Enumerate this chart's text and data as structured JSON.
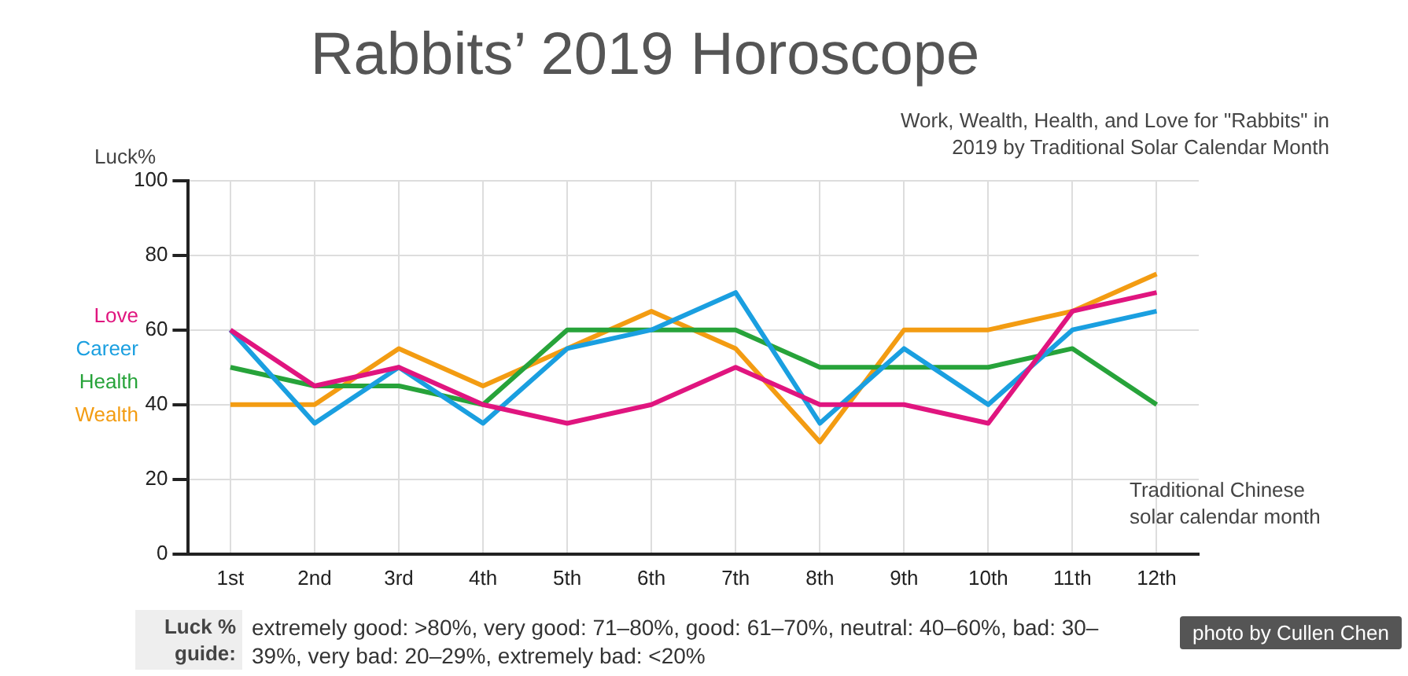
{
  "chart_data": {
    "type": "line",
    "title": "Rabbits’ 2019 Horoscope",
    "subtitle": "Work, Wealth, Health, and Love for \"Rabbits\" in 2019 by Traditional Solar Calendar Month",
    "ylabel": "Luck%",
    "xlabel": "Traditional Chinese solar calendar month",
    "categories": [
      "1st",
      "2nd",
      "3rd",
      "4th",
      "5th",
      "6th",
      "7th",
      "8th",
      "9th",
      "10th",
      "11th",
      "12th"
    ],
    "series": [
      {
        "name": "Love",
        "color": "#e0157f",
        "values": [
          60,
          45,
          50,
          40,
          35,
          40,
          50,
          40,
          40,
          35,
          65,
          70
        ]
      },
      {
        "name": "Career",
        "color": "#1a9fe0",
        "values": [
          60,
          35,
          50,
          35,
          55,
          60,
          70,
          35,
          55,
          40,
          60,
          65
        ]
      },
      {
        "name": "Health",
        "color": "#27a33a",
        "values": [
          50,
          45,
          45,
          40,
          60,
          60,
          60,
          50,
          50,
          50,
          55,
          40
        ]
      },
      {
        "name": "Wealth",
        "color": "#f39c12",
        "values": [
          40,
          40,
          55,
          45,
          55,
          65,
          55,
          30,
          60,
          60,
          65,
          75
        ]
      }
    ],
    "ylim": [
      0,
      100
    ],
    "yticks": [
      0,
      20,
      40,
      60,
      80,
      100
    ],
    "grid": true,
    "legend": "left",
    "marker": "none",
    "line_style": "solid",
    "annotations": [
      "Luck % guide:",
      "extremely good: >80%, very good: 71–80%, good: 61–70%, neutral: 40–60%, bad: 30–39%, very bad: 20–29%, extremely bad: <20%",
      "photo by Cullen Chen"
    ]
  }
}
